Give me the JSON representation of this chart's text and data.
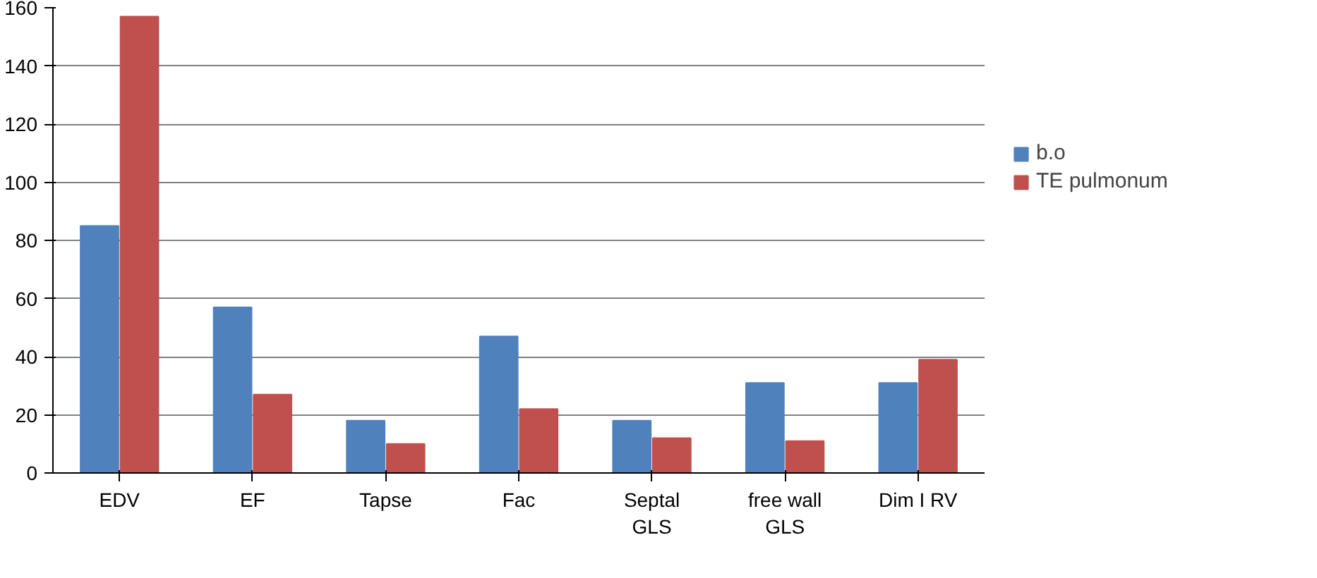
{
  "chart_data": {
    "type": "bar",
    "categories": [
      "EDV",
      "EF",
      "Tapse",
      "Fac",
      "Septal GLS",
      "free wall GLS",
      "Dim I RV"
    ],
    "series": [
      {
        "name": "b.o",
        "color": "#4f81bd",
        "values": [
          85,
          57,
          18,
          47,
          18,
          31,
          31
        ]
      },
      {
        "name": "TE pulmonum",
        "color": "#c0504d",
        "values": [
          157,
          27,
          10,
          22,
          12,
          11,
          39
        ]
      }
    ],
    "ylim": [
      0,
      160
    ],
    "yticks": [
      0,
      20,
      40,
      60,
      80,
      100,
      120,
      140,
      160
    ],
    "grid": "y",
    "legend": "right"
  }
}
